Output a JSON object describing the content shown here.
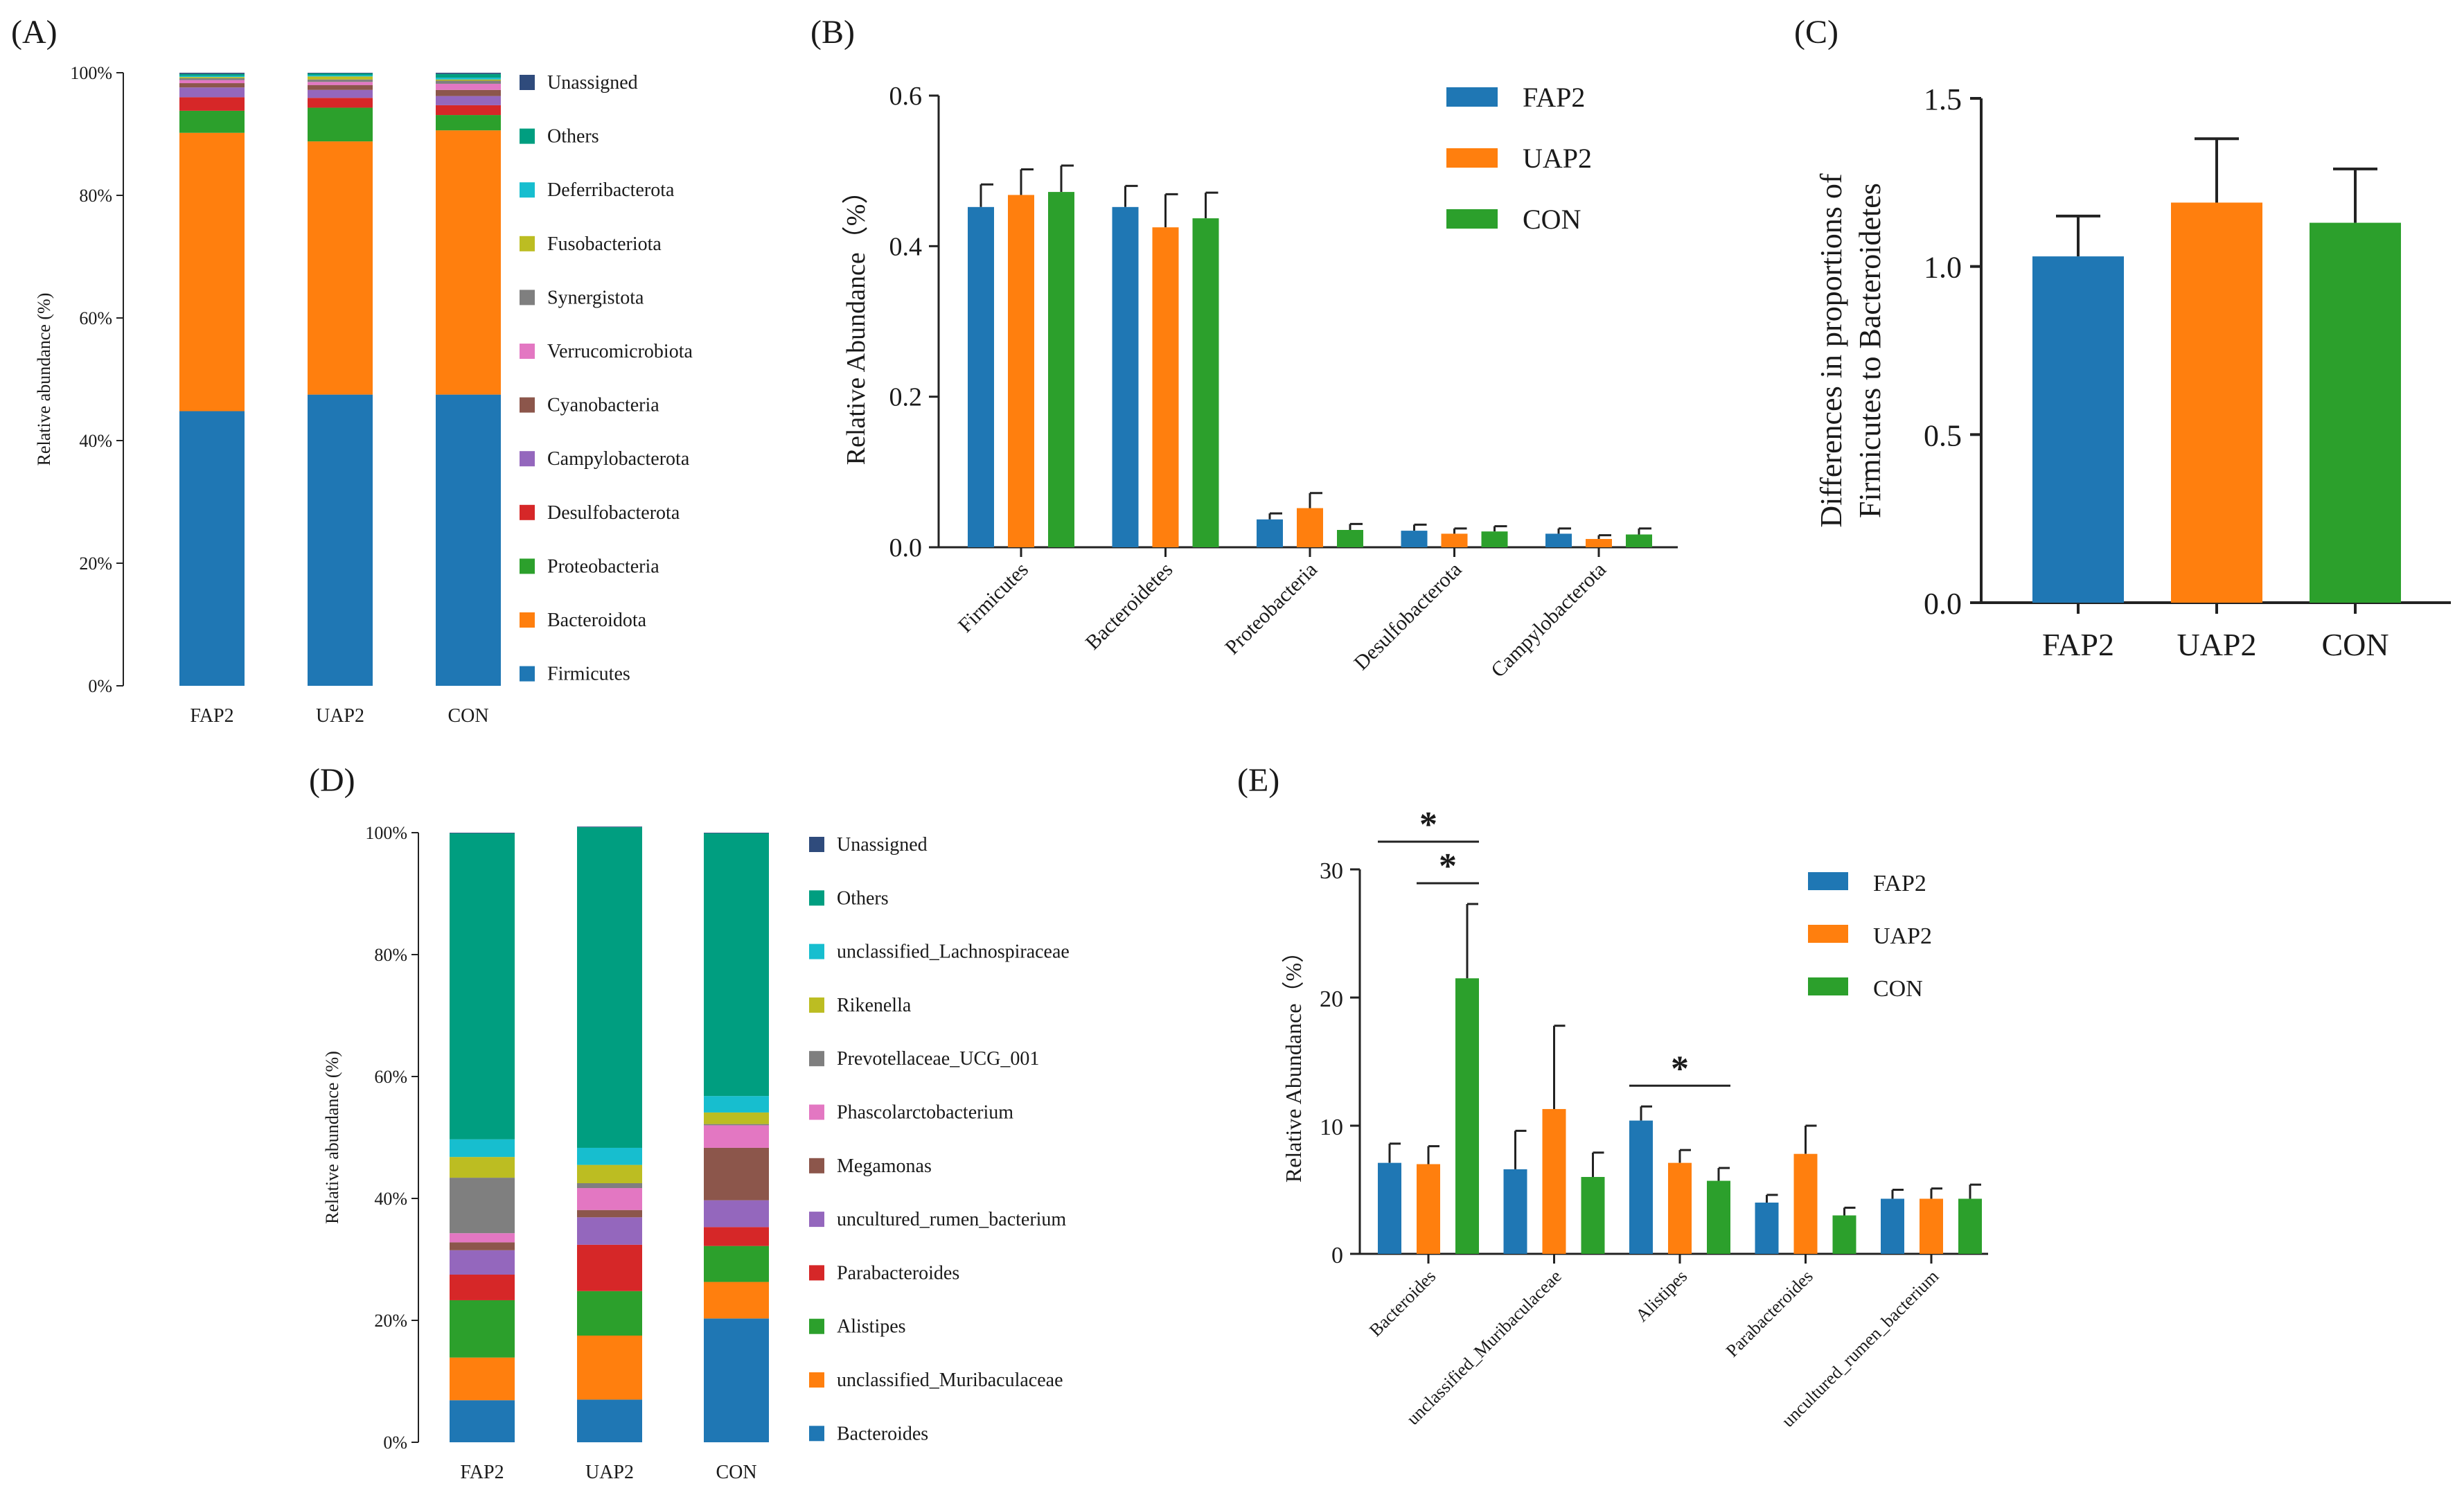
{
  "colors": {
    "blue": "#1f77b4",
    "orange": "#ff7f0e",
    "green": "#2ca02c",
    "red": "#d62728",
    "purple": "#9467bd",
    "brown": "#8c564b",
    "pink": "#e377c2",
    "gray": "#7f7f7f",
    "olive": "#bcbd22",
    "cyan": "#17becf",
    "teal": "#009e80",
    "navy": "#2f4b7c",
    "axis": "#222222"
  },
  "chart_data": [
    {
      "panel": "(A)",
      "type": "bar",
      "stacked": true,
      "ylabel": "Relative abundance (%)",
      "ylim": [
        0,
        100
      ],
      "yticks": [
        "0%",
        "20%",
        "40%",
        "60%",
        "80%",
        "100%"
      ],
      "categories": [
        "FAP2",
        "UAP2",
        "CON"
      ],
      "legend_position": "right",
      "series": [
        {
          "name": "Firmicutes",
          "color": "#1f77b4",
          "values": [
            44.8,
            47.5,
            47.5
          ]
        },
        {
          "name": "Bacteroidota",
          "color": "#ff7f0e",
          "values": [
            45.4,
            41.3,
            43.1
          ]
        },
        {
          "name": "Proteobacteria",
          "color": "#2ca02c",
          "values": [
            3.6,
            5.5,
            2.5
          ]
        },
        {
          "name": "Desulfobacterota",
          "color": "#d62728",
          "values": [
            2.2,
            1.6,
            1.6
          ]
        },
        {
          "name": "Campylobacterota",
          "color": "#9467bd",
          "values": [
            1.6,
            1.3,
            1.5
          ]
        },
        {
          "name": "Cyanobacteria",
          "color": "#8c564b",
          "values": [
            0.7,
            0.8,
            1.0
          ]
        },
        {
          "name": "Verrucomicrobiota",
          "color": "#e377c2",
          "values": [
            0.5,
            0.5,
            1.0
          ]
        },
        {
          "name": "Synergistota",
          "color": "#7f7f7f",
          "values": [
            0.3,
            0.4,
            0.5
          ]
        },
        {
          "name": "Fusobacteriota",
          "color": "#bcbd22",
          "values": [
            0.2,
            0.5,
            0.2
          ]
        },
        {
          "name": "Deferribacterota",
          "color": "#17becf",
          "values": [
            0.2,
            0.2,
            0.3
          ]
        },
        {
          "name": "Others",
          "color": "#009e80",
          "values": [
            0.3,
            0.3,
            0.6
          ]
        },
        {
          "name": "Unassigned",
          "color": "#2f4b7c",
          "values": [
            0.2,
            0.1,
            0.2
          ]
        }
      ]
    },
    {
      "panel": "(B)",
      "type": "bar",
      "ylabel": "Relative Abundance（%）",
      "ylim": [
        0,
        0.6
      ],
      "yticks": [
        "0.0",
        "0.2",
        "0.4",
        "0.6"
      ],
      "categories": [
        "Firmicutes",
        "Bacteroidetes",
        "Proteobacteria",
        "Desulfobacterota",
        "Campylobacterota"
      ],
      "legend_position": "top-right",
      "series": [
        {
          "name": "FAP2",
          "color": "#1f77b4",
          "values": [
            0.452,
            0.452,
            0.037,
            0.022,
            0.018
          ],
          "errors": [
            0.03,
            0.028,
            0.008,
            0.008,
            0.007
          ]
        },
        {
          "name": "UAP2",
          "color": "#ff7f0e",
          "values": [
            0.468,
            0.425,
            0.052,
            0.018,
            0.011
          ],
          "errors": [
            0.034,
            0.044,
            0.02,
            0.007,
            0.005
          ]
        },
        {
          "name": "CON",
          "color": "#2ca02c",
          "values": [
            0.472,
            0.437,
            0.023,
            0.021,
            0.017
          ],
          "errors": [
            0.035,
            0.034,
            0.008,
            0.007,
            0.008
          ]
        }
      ]
    },
    {
      "panel": "(C)",
      "type": "bar",
      "ylabel_lines": [
        "Differences in proportions of",
        "Firmicutes to Bacteroidetes"
      ],
      "ylim": [
        0,
        1.5
      ],
      "yticks": [
        "0.0",
        "0.5",
        "1.0",
        "1.5"
      ],
      "categories": [
        "FAP2",
        "UAP2",
        "CON"
      ],
      "values": [
        1.03,
        1.19,
        1.13
      ],
      "errors": [
        0.12,
        0.19,
        0.16
      ],
      "colors": [
        "#1f77b4",
        "#ff7f0e",
        "#2ca02c"
      ]
    },
    {
      "panel": "(D)",
      "type": "bar",
      "stacked": true,
      "ylabel": "Relative abundance (%)",
      "ylim": [
        0,
        100
      ],
      "yticks": [
        "0%",
        "20%",
        "40%",
        "60%",
        "80%",
        "100%"
      ],
      "categories": [
        "FAP2",
        "UAP2",
        "CON"
      ],
      "legend_position": "right",
      "series": [
        {
          "name": "Bacteroides",
          "color": "#1f77b4",
          "values": [
            6.9,
            7.0,
            20.3
          ]
        },
        {
          "name": "unclassified_Muribaculaceae",
          "color": "#ff7f0e",
          "values": [
            7.0,
            10.5,
            6.0
          ]
        },
        {
          "name": "Alistipes",
          "color": "#2ca02c",
          "values": [
            9.4,
            7.3,
            5.9
          ]
        },
        {
          "name": "Parabacteroides",
          "color": "#d62728",
          "values": [
            4.2,
            7.6,
            3.1
          ]
        },
        {
          "name": "uncultured_rumen_bacterium",
          "color": "#9467bd",
          "values": [
            4.0,
            4.5,
            4.4
          ]
        },
        {
          "name": "Megamonas",
          "color": "#8c564b",
          "values": [
            1.3,
            1.2,
            8.6
          ]
        },
        {
          "name": "Phascolarctobacterium",
          "color": "#e377c2",
          "values": [
            1.5,
            3.6,
            3.7
          ]
        },
        {
          "name": "Prevotellaceae_UCG_001",
          "color": "#7f7f7f",
          "values": [
            9.1,
            0.8,
            0.2
          ]
        },
        {
          "name": "Rikenella",
          "color": "#bcbd22",
          "values": [
            3.4,
            3.0,
            1.9
          ]
        },
        {
          "name": "unclassified_Lachnospiraceae",
          "color": "#17becf",
          "values": [
            2.9,
            2.8,
            2.7
          ]
        },
        {
          "name": "Others",
          "color": "#009e80",
          "values": [
            50.2,
            52.6,
            43.1
          ]
        },
        {
          "name": "Unassigned",
          "color": "#2f4b7c",
          "values": [
            0.1,
            0.1,
            0.1
          ]
        }
      ]
    },
    {
      "panel": "(E)",
      "type": "bar",
      "ylabel": "Relative Abundance（%）",
      "ylim": [
        0,
        30
      ],
      "yticks": [
        "0",
        "10",
        "20",
        "30"
      ],
      "categories": [
        "Bacteroides",
        "unclassified_Muribaculaceae",
        "Alistipes",
        "Parabacteroides",
        "uncultured_rumen_bacterium"
      ],
      "legend_position": "top-right",
      "series": [
        {
          "name": "FAP2",
          "color": "#1f77b4",
          "values": [
            7.1,
            6.6,
            10.4,
            4.0,
            4.3
          ],
          "errors": [
            1.5,
            3.0,
            1.1,
            0.6,
            0.7
          ]
        },
        {
          "name": "UAP2",
          "color": "#ff7f0e",
          "values": [
            7.0,
            11.3,
            7.1,
            7.8,
            4.3
          ],
          "errors": [
            1.4,
            6.5,
            1.0,
            2.2,
            0.8
          ]
        },
        {
          "name": "CON",
          "color": "#2ca02c",
          "values": [
            21.5,
            6.0,
            5.7,
            3.0,
            4.3
          ],
          "errors": [
            5.8,
            1.9,
            1.0,
            0.6,
            1.1
          ]
        }
      ],
      "significance": [
        {
          "label": "*",
          "from": "Bacteroides FAP2",
          "to": "Bacteroides CON"
        },
        {
          "label": "*",
          "from": "Bacteroides UAP2",
          "to": "Bacteroides CON"
        },
        {
          "label": "*",
          "from": "Alistipes FAP2",
          "to": "Alistipes CON"
        }
      ]
    }
  ]
}
